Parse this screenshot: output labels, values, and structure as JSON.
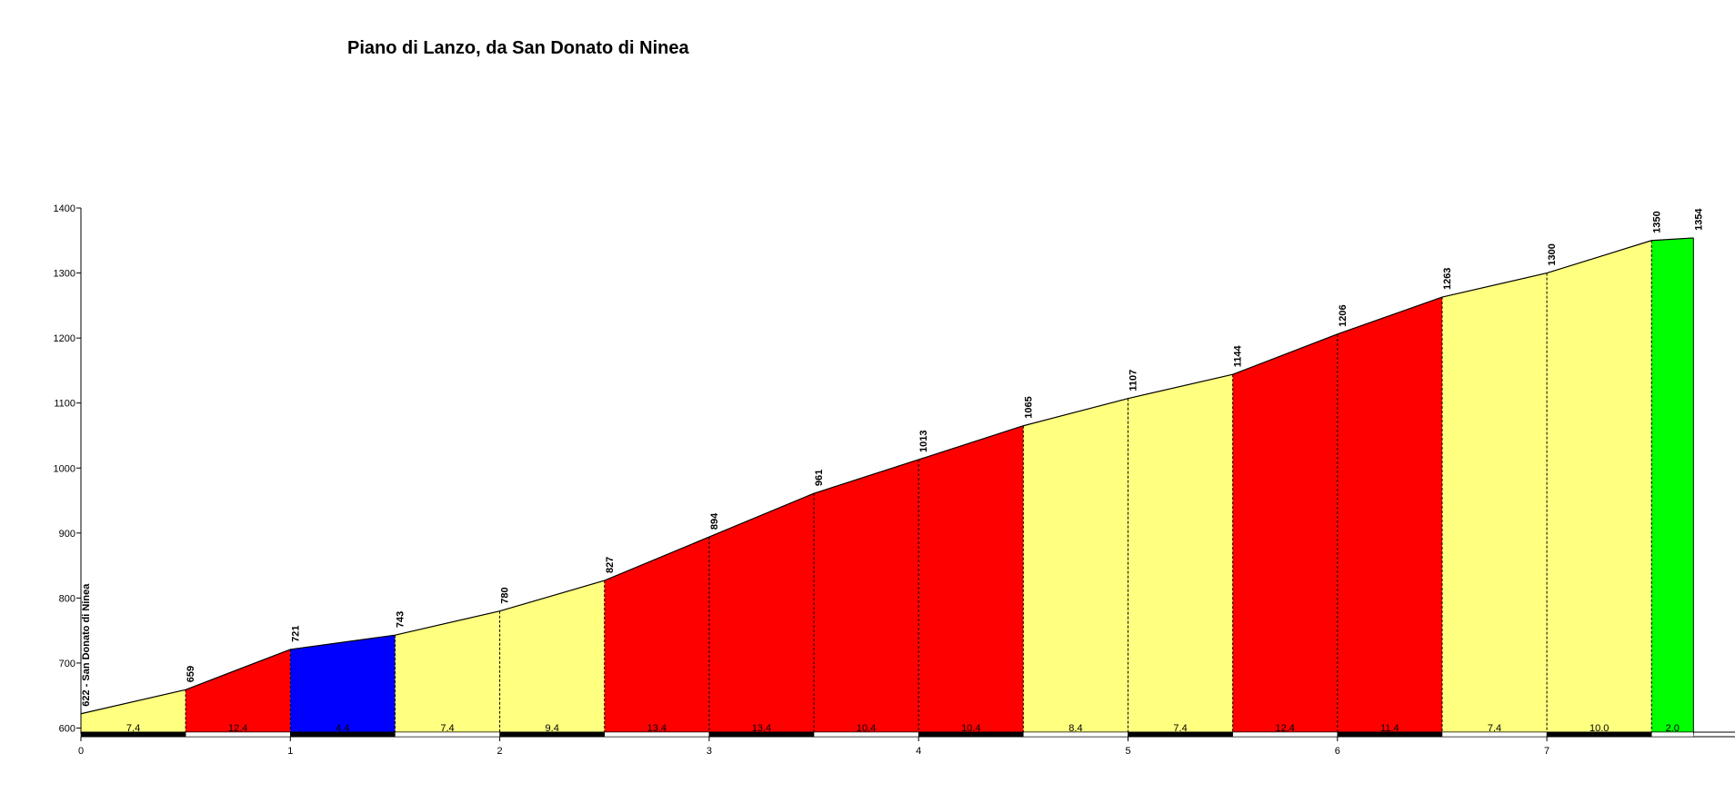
{
  "chart_data": {
    "type": "area",
    "title": "Piano di Lanzo, da San Donato di Ninea",
    "xlabel": "",
    "ylabel": "",
    "xlim": [
      0,
      8
    ],
    "ylim": [
      600,
      1400
    ],
    "x_ticks": [
      0,
      1,
      2,
      3,
      4,
      5,
      6,
      7
    ],
    "y_ticks": [
      600,
      700,
      800,
      900,
      1000,
      1100,
      1200,
      1300,
      1400
    ],
    "start_label": "622 - San Donato di Ninea",
    "points": [
      {
        "x": 0.0,
        "y": 622
      },
      {
        "x": 0.5,
        "y": 659
      },
      {
        "x": 1.0,
        "y": 721
      },
      {
        "x": 1.5,
        "y": 743
      },
      {
        "x": 2.0,
        "y": 780
      },
      {
        "x": 2.5,
        "y": 827
      },
      {
        "x": 3.0,
        "y": 894
      },
      {
        "x": 3.5,
        "y": 961
      },
      {
        "x": 4.0,
        "y": 1013
      },
      {
        "x": 4.5,
        "y": 1065
      },
      {
        "x": 5.0,
        "y": 1107
      },
      {
        "x": 5.5,
        "y": 1144
      },
      {
        "x": 6.0,
        "y": 1206
      },
      {
        "x": 6.5,
        "y": 1263
      },
      {
        "x": 7.0,
        "y": 1300
      },
      {
        "x": 7.5,
        "y": 1350
      },
      {
        "x": 7.7,
        "y": 1354
      }
    ],
    "segments": [
      {
        "gradient": "7.4",
        "color": "#ffff80"
      },
      {
        "gradient": "12.4",
        "color": "#ff0000"
      },
      {
        "gradient": "4.4",
        "color": "#0000ff"
      },
      {
        "gradient": "7.4",
        "color": "#ffff80"
      },
      {
        "gradient": "9.4",
        "color": "#ffff80"
      },
      {
        "gradient": "13.4",
        "color": "#ff0000"
      },
      {
        "gradient": "13.4",
        "color": "#ff0000"
      },
      {
        "gradient": "10.4",
        "color": "#ff0000"
      },
      {
        "gradient": "10.4",
        "color": "#ff0000"
      },
      {
        "gradient": "8.4",
        "color": "#ffff80"
      },
      {
        "gradient": "7.4",
        "color": "#ffff80"
      },
      {
        "gradient": "12.4",
        "color": "#ff0000"
      },
      {
        "gradient": "11.4",
        "color": "#ff0000"
      },
      {
        "gradient": "7.4",
        "color": "#ffff80"
      },
      {
        "gradient": "10.0",
        "color": "#ffff80"
      },
      {
        "gradient": "2.0",
        "color": "#00ff00"
      }
    ],
    "grid": false,
    "legend": "none"
  }
}
